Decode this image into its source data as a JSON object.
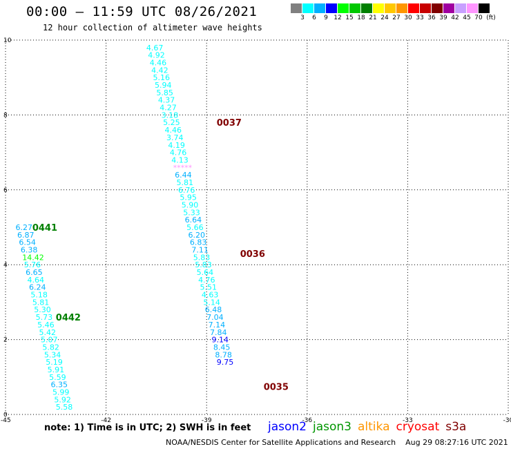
{
  "title": "00:00 – 11:59 UTC 08/26/2021",
  "subtitle": "12 hour collection of altimeter wave heights",
  "legend": {
    "unit": "(ft)",
    "ticks": [
      "3",
      "6",
      "9",
      "12",
      "15",
      "18",
      "21",
      "24",
      "27",
      "30",
      "33",
      "36",
      "39",
      "42",
      "45",
      "70"
    ],
    "colors": [
      "#808080",
      "#00ffff",
      "#00b0ff",
      "#0000ff",
      "#00ff00",
      "#00c800",
      "#008000",
      "#ffff00",
      "#ffc800",
      "#ff9600",
      "#ff0000",
      "#c80000",
      "#800000",
      "#a000a0",
      "#c8a0ff",
      "#ff96ff",
      "#000000"
    ]
  },
  "note": "note: 1) Time is in UTC; 2) SWH is in feet",
  "satellites": [
    {
      "name": "jason2",
      "color": "#0000ff"
    },
    {
      "name": "jason3",
      "color": "#009600"
    },
    {
      "name": "altika",
      "color": "#ff9600"
    },
    {
      "name": "cryosat",
      "color": "#ff0000"
    },
    {
      "name": "s3a",
      "color": "#800000"
    }
  ],
  "credit": "NOAA/NESDIS Center for Satellite Applications and Research    Aug 29 08:27:16 UTC 2021",
  "chart_data": {
    "type": "scatter",
    "xticks": [
      "-45",
      "-42",
      "-39",
      "-36",
      "-33",
      "-30"
    ],
    "yticks": [
      "0",
      "2",
      "4",
      "6",
      "8",
      "10"
    ],
    "xlim": [
      -45,
      -30
    ],
    "ylim": [
      0,
      10
    ],
    "grid": true,
    "tracks": [
      {
        "label": "0037",
        "labelColor": "#800000",
        "labelX": -38.7,
        "labelY": 7.8,
        "points": [
          {
            "x": -40.8,
            "y": 9.8,
            "v": "4.67",
            "c": "#00ffff"
          },
          {
            "x": -40.75,
            "y": 9.6,
            "v": "4.92",
            "c": "#00ffff"
          },
          {
            "x": -40.7,
            "y": 9.4,
            "v": "4.46",
            "c": "#00ffff"
          },
          {
            "x": -40.65,
            "y": 9.2,
            "v": "4.42",
            "c": "#00ffff"
          },
          {
            "x": -40.6,
            "y": 9.0,
            "v": "5.16",
            "c": "#00ffff"
          },
          {
            "x": -40.55,
            "y": 8.8,
            "v": "5.94",
            "c": "#00ffff"
          },
          {
            "x": -40.5,
            "y": 8.6,
            "v": "5.85",
            "c": "#00ffff"
          },
          {
            "x": -40.45,
            "y": 8.4,
            "v": "4.37",
            "c": "#00ffff"
          },
          {
            "x": -40.4,
            "y": 8.2,
            "v": "4.27",
            "c": "#00ffff"
          },
          {
            "x": -40.35,
            "y": 8.0,
            "v": "3.18",
            "c": "#00ffff"
          },
          {
            "x": -40.3,
            "y": 7.8,
            "v": "5.25",
            "c": "#00ffff"
          },
          {
            "x": -40.25,
            "y": 7.6,
            "v": "4.46",
            "c": "#00ffff"
          },
          {
            "x": -40.2,
            "y": 7.4,
            "v": "3.74",
            "c": "#00ffff"
          },
          {
            "x": -40.15,
            "y": 7.2,
            "v": "4.19",
            "c": "#00ffff"
          },
          {
            "x": -40.1,
            "y": 7.0,
            "v": "4.76",
            "c": "#00ffff"
          },
          {
            "x": -40.05,
            "y": 6.8,
            "v": "4.13",
            "c": "#00ffff"
          },
          {
            "x": -40.0,
            "y": 6.6,
            "v": "*****",
            "c": "#ff96ff"
          }
        ]
      },
      {
        "label": "0036",
        "labelColor": "#800000",
        "labelX": -38.0,
        "labelY": 4.3,
        "points": [
          {
            "x": -39.95,
            "y": 6.4,
            "v": "6.44",
            "c": "#00b0ff"
          },
          {
            "x": -39.9,
            "y": 6.2,
            "v": "5.81",
            "c": "#00ffff"
          },
          {
            "x": -39.85,
            "y": 6.0,
            "v": "6.76",
            "c": "#00ffff"
          },
          {
            "x": -39.8,
            "y": 5.8,
            "v": "5.95",
            "c": "#00ffff"
          },
          {
            "x": -39.75,
            "y": 5.6,
            "v": "5.90",
            "c": "#00ffff"
          },
          {
            "x": -39.7,
            "y": 5.4,
            "v": "5.33",
            "c": "#00ffff"
          },
          {
            "x": -39.65,
            "y": 5.2,
            "v": "6.64",
            "c": "#00b0ff"
          },
          {
            "x": -39.6,
            "y": 5.0,
            "v": "5.66",
            "c": "#00ffff"
          },
          {
            "x": -39.55,
            "y": 4.8,
            "v": "6.20",
            "c": "#00b0ff"
          },
          {
            "x": -39.5,
            "y": 4.6,
            "v": "6.83",
            "c": "#00b0ff"
          },
          {
            "x": -39.45,
            "y": 4.4,
            "v": "7.11",
            "c": "#00b0ff"
          },
          {
            "x": -39.4,
            "y": 4.2,
            "v": "5.83",
            "c": "#00ffff"
          },
          {
            "x": -39.35,
            "y": 4.0,
            "v": "5.83",
            "c": "#00ffff"
          },
          {
            "x": -39.3,
            "y": 3.8,
            "v": "5.64",
            "c": "#00ffff"
          },
          {
            "x": -39.25,
            "y": 3.6,
            "v": "4.76",
            "c": "#00ffff"
          },
          {
            "x": -39.2,
            "y": 3.4,
            "v": "5.51",
            "c": "#00ffff"
          },
          {
            "x": -39.15,
            "y": 3.2,
            "v": "4.63",
            "c": "#00ffff"
          },
          {
            "x": -39.1,
            "y": 3.0,
            "v": "5.14",
            "c": "#00ffff"
          }
        ]
      },
      {
        "label": "0035",
        "labelColor": "#800000",
        "labelX": -37.3,
        "labelY": 0.75,
        "points": [
          {
            "x": -39.05,
            "y": 2.8,
            "v": "6.48",
            "c": "#00b0ff"
          },
          {
            "x": -39.0,
            "y": 2.6,
            "v": "7.04",
            "c": "#00b0ff"
          },
          {
            "x": -38.95,
            "y": 2.4,
            "v": "7.14",
            "c": "#00b0ff"
          },
          {
            "x": -38.9,
            "y": 2.2,
            "v": "7.84",
            "c": "#00b0ff"
          },
          {
            "x": -38.85,
            "y": 2.0,
            "v": "9.14",
            "c": "#0000ff"
          },
          {
            "x": -38.8,
            "y": 1.8,
            "v": "8.45",
            "c": "#00b0ff"
          },
          {
            "x": -38.75,
            "y": 1.6,
            "v": "8.78",
            "c": "#00b0ff"
          },
          {
            "x": -38.7,
            "y": 1.4,
            "v": "9.75",
            "c": "#0000ff"
          }
        ]
      },
      {
        "label": "0441",
        "labelColor": "#008000",
        "labelX": -44.2,
        "labelY": 5.0,
        "points": [
          {
            "x": -44.7,
            "y": 5.0,
            "v": "6.27",
            "c": "#00b0ff"
          },
          {
            "x": -44.65,
            "y": 4.8,
            "v": "6.87",
            "c": "#00b0ff"
          },
          {
            "x": -44.6,
            "y": 4.6,
            "v": "6.54",
            "c": "#00b0ff"
          },
          {
            "x": -44.55,
            "y": 4.4,
            "v": "6.38",
            "c": "#00b0ff"
          },
          {
            "x": -44.5,
            "y": 4.2,
            "v": "14.42",
            "c": "#00ff00"
          },
          {
            "x": -44.45,
            "y": 4.0,
            "v": "5.76",
            "c": "#00ffff"
          },
          {
            "x": -44.4,
            "y": 3.8,
            "v": "6.65",
            "c": "#00b0ff"
          },
          {
            "x": -44.35,
            "y": 3.6,
            "v": "4.64",
            "c": "#00ffff"
          },
          {
            "x": -44.3,
            "y": 3.4,
            "v": "6.24",
            "c": "#00b0ff"
          },
          {
            "x": -44.25,
            "y": 3.2,
            "v": "5.18",
            "c": "#00ffff"
          },
          {
            "x": -44.2,
            "y": 3.0,
            "v": "5.81",
            "c": "#00ffff"
          },
          {
            "x": -44.15,
            "y": 2.8,
            "v": "5.30",
            "c": "#00ffff"
          }
        ]
      },
      {
        "label": "0442",
        "labelColor": "#008000",
        "labelX": -43.5,
        "labelY": 2.6,
        "points": [
          {
            "x": -44.1,
            "y": 2.6,
            "v": "5.73",
            "c": "#00ffff"
          },
          {
            "x": -44.05,
            "y": 2.4,
            "v": "5.46",
            "c": "#00ffff"
          },
          {
            "x": -44.0,
            "y": 2.2,
            "v": "5.42",
            "c": "#00ffff"
          },
          {
            "x": -43.95,
            "y": 2.0,
            "v": "5.07",
            "c": "#00ffff"
          },
          {
            "x": -43.9,
            "y": 1.8,
            "v": "5.82",
            "c": "#00ffff"
          },
          {
            "x": -43.85,
            "y": 1.6,
            "v": "5.34",
            "c": "#00ffff"
          },
          {
            "x": -43.8,
            "y": 1.4,
            "v": "5.19",
            "c": "#00ffff"
          },
          {
            "x": -43.75,
            "y": 1.2,
            "v": "5.91",
            "c": "#00ffff"
          },
          {
            "x": -43.7,
            "y": 1.0,
            "v": "5.59",
            "c": "#00ffff"
          },
          {
            "x": -43.65,
            "y": 0.8,
            "v": "6.35",
            "c": "#00b0ff"
          },
          {
            "x": -43.6,
            "y": 0.6,
            "v": "5.99",
            "c": "#00ffff"
          },
          {
            "x": -43.55,
            "y": 0.4,
            "v": "5.92",
            "c": "#00ffff"
          },
          {
            "x": -43.5,
            "y": 0.2,
            "v": "5.58",
            "c": "#00ffff"
          }
        ]
      }
    ]
  }
}
